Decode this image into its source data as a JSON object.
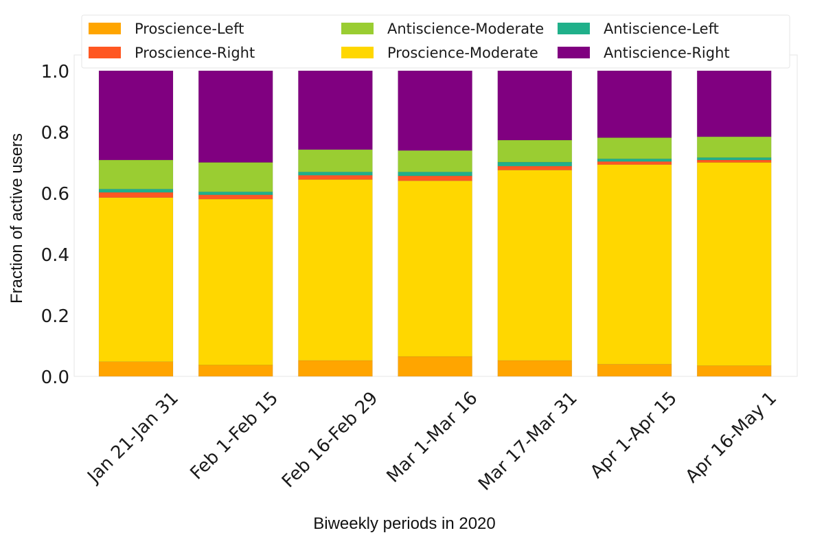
{
  "chart_data": {
    "type": "bar",
    "stacked": true,
    "title": "",
    "xlabel": "Biweekly periods in 2020",
    "ylabel": "Fraction of active users",
    "ylim": [
      0,
      1
    ],
    "yticks": [
      "0.0",
      "0.2",
      "0.4",
      "0.6",
      "0.8",
      "1.0"
    ],
    "grid": false,
    "legend_position": "top",
    "categories": [
      "Jan 21-Jan 31",
      "Feb 1-Feb 15",
      "Feb 16-Feb 29",
      "Mar 1-Mar 16",
      "Mar 17-Mar 31",
      "Apr 1-Apr 15",
      "Apr 16-May 1"
    ],
    "series": [
      {
        "name": "Proscience-Left",
        "color": "#FFA500",
        "values": [
          0.048,
          0.037,
          0.052,
          0.065,
          0.052,
          0.04,
          0.035
        ]
      },
      {
        "name": "Proscience-Moderate",
        "color": "#FFD700",
        "values": [
          0.537,
          0.543,
          0.592,
          0.575,
          0.623,
          0.653,
          0.665
        ]
      },
      {
        "name": "Proscience-Right",
        "color": "#FF5722",
        "values": [
          0.017,
          0.014,
          0.014,
          0.016,
          0.013,
          0.01,
          0.008
        ]
      },
      {
        "name": "Antiscience-Left",
        "color": "#20B08A",
        "values": [
          0.011,
          0.01,
          0.011,
          0.013,
          0.013,
          0.009,
          0.008
        ]
      },
      {
        "name": "Antiscience-Moderate",
        "color": "#9ACD32",
        "values": [
          0.095,
          0.096,
          0.073,
          0.07,
          0.072,
          0.069,
          0.068
        ]
      },
      {
        "name": "Antiscience-Right",
        "color": "#800080",
        "values": [
          0.292,
          0.3,
          0.258,
          0.261,
          0.227,
          0.219,
          0.216
        ]
      }
    ],
    "legend_order": [
      0,
      2,
      4,
      1,
      3,
      5
    ]
  }
}
